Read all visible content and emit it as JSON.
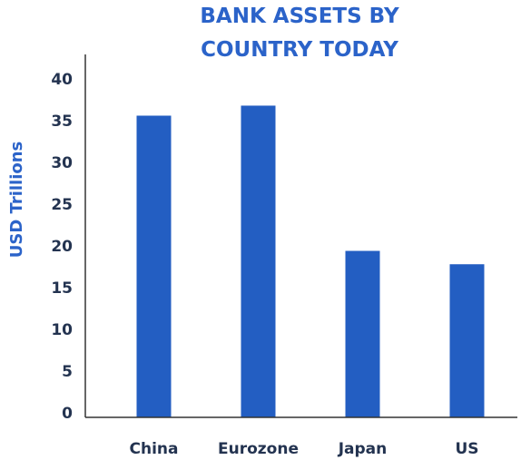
{
  "chart_data": {
    "type": "bar",
    "title_lines": [
      "BANK ASSETS BY",
      "COUNTRY TODAY"
    ],
    "xlabel": "",
    "ylabel": "USD Trillions",
    "categories": [
      "China",
      "Eurozone",
      "Japan",
      "US"
    ],
    "values": [
      35.6,
      36.8,
      19.4,
      17.8
    ],
    "ylim": [
      0,
      40
    ],
    "yticks": [
      "0",
      "5",
      "10",
      "15",
      "20",
      "25",
      "30",
      "35",
      "40"
    ],
    "grid": false,
    "legend": "none",
    "colors": {
      "bar": "#235ec2",
      "title": "#2b63c9",
      "ylabel": "#2b63c9",
      "tick": "#233350",
      "axis": "#333333"
    }
  }
}
